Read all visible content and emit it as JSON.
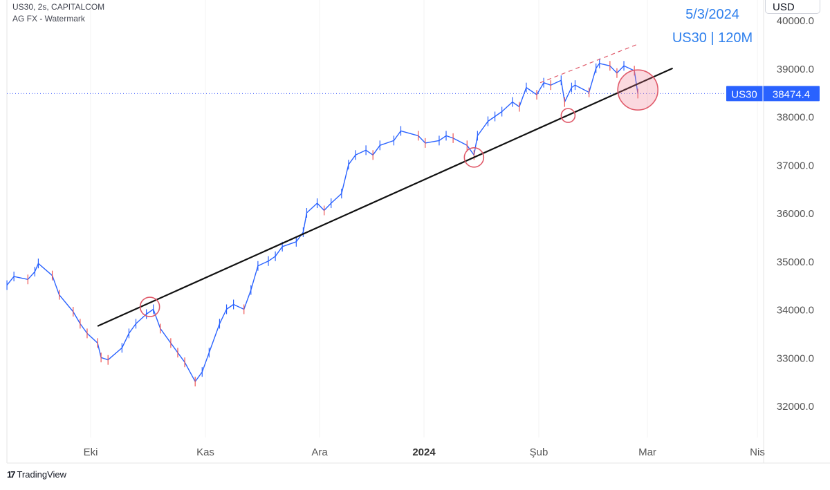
{
  "header": {
    "line1": "US30, 2s, CAPITALCOM",
    "line2": "AG FX - Watermark"
  },
  "currency": "USD",
  "branding": "TradingView",
  "annotations": {
    "date": "5/3/2024",
    "subtitle": "US30 | 120M"
  },
  "price_tag": {
    "symbol": "US30",
    "value": "38474.4"
  },
  "colors": {
    "up": "#2962ff",
    "down": "#ef5350",
    "trendline": "#111111",
    "annotation_text": "#2f80ed",
    "circle": "#e05a6a",
    "price_line": "#3d5afe",
    "axis_text": "#555555"
  },
  "chart_data": {
    "type": "line",
    "title": "",
    "x_ticks": [
      "Eki",
      "Kas",
      "Ara",
      "2024",
      "Şub",
      "Mar",
      "Nis"
    ],
    "y_ticks": [
      "32000.0",
      "33000.0",
      "34000.0",
      "35000.0",
      "36000.0",
      "37000.0",
      "38000.0",
      "39000.0",
      "40000.0"
    ],
    "ylim": [
      31500,
      40400
    ],
    "last_price": 38474.4,
    "series": [
      {
        "values": [
          [
            "2023-09-06",
            34500
          ],
          [
            "2023-09-08",
            34680
          ],
          [
            "2023-09-12",
            34620
          ],
          [
            "2023-09-14",
            34780
          ],
          [
            "2023-09-15",
            34950
          ],
          [
            "2023-09-19",
            34700
          ],
          [
            "2023-09-21",
            34300
          ],
          [
            "2023-09-25",
            33950
          ],
          [
            "2023-09-27",
            33700
          ],
          [
            "2023-09-29",
            33500
          ],
          [
            "2023-10-02",
            33300
          ],
          [
            "2023-10-03",
            33000
          ],
          [
            "2023-10-05",
            32950
          ],
          [
            "2023-10-09",
            33200
          ],
          [
            "2023-10-11",
            33500
          ],
          [
            "2023-10-13",
            33700
          ],
          [
            "2023-10-16",
            33900
          ],
          [
            "2023-10-18",
            34000
          ],
          [
            "2023-10-20",
            33600
          ],
          [
            "2023-10-23",
            33300
          ],
          [
            "2023-10-25",
            33100
          ],
          [
            "2023-10-27",
            32900
          ],
          [
            "2023-10-30",
            32500
          ],
          [
            "2023-11-01",
            32700
          ],
          [
            "2023-11-03",
            33100
          ],
          [
            "2023-11-06",
            33700
          ],
          [
            "2023-11-08",
            34000
          ],
          [
            "2023-11-10",
            34100
          ],
          [
            "2023-11-13",
            34000
          ],
          [
            "2023-11-15",
            34400
          ],
          [
            "2023-11-17",
            34900
          ],
          [
            "2023-11-20",
            35000
          ],
          [
            "2023-11-22",
            35100
          ],
          [
            "2023-11-24",
            35300
          ],
          [
            "2023-11-28",
            35400
          ],
          [
            "2023-11-30",
            35600
          ],
          [
            "2023-12-01",
            36000
          ],
          [
            "2023-12-04",
            36200
          ],
          [
            "2023-12-06",
            36050
          ],
          [
            "2023-12-08",
            36200
          ],
          [
            "2023-12-11",
            36400
          ],
          [
            "2023-12-13",
            37000
          ],
          [
            "2023-12-15",
            37200
          ],
          [
            "2023-12-18",
            37300
          ],
          [
            "2023-12-20",
            37200
          ],
          [
            "2023-12-22",
            37400
          ],
          [
            "2023-12-26",
            37500
          ],
          [
            "2023-12-28",
            37700
          ],
          [
            "2024-01-02",
            37600
          ],
          [
            "2024-01-04",
            37450
          ],
          [
            "2024-01-08",
            37500
          ],
          [
            "2024-01-10",
            37600
          ],
          [
            "2024-01-12",
            37550
          ],
          [
            "2024-01-16",
            37400
          ],
          [
            "2024-01-18",
            37200
          ],
          [
            "2024-01-19",
            37600
          ],
          [
            "2024-01-22",
            37900
          ],
          [
            "2024-01-24",
            38000
          ],
          [
            "2024-01-26",
            38100
          ],
          [
            "2024-01-29",
            38300
          ],
          [
            "2024-01-31",
            38200
          ],
          [
            "2024-02-02",
            38600
          ],
          [
            "2024-02-05",
            38450
          ],
          [
            "2024-02-07",
            38700
          ],
          [
            "2024-02-09",
            38650
          ],
          [
            "2024-02-12",
            38750
          ],
          [
            "2024-02-13",
            38300
          ],
          [
            "2024-02-15",
            38600
          ],
          [
            "2024-02-16",
            38650
          ],
          [
            "2024-02-20",
            38500
          ],
          [
            "2024-02-22",
            39000
          ],
          [
            "2024-02-23",
            39100
          ],
          [
            "2024-02-26",
            39050
          ],
          [
            "2024-02-28",
            38900
          ],
          [
            "2024-03-01",
            39050
          ],
          [
            "2024-03-04",
            38950
          ],
          [
            "2024-03-05",
            38474.4
          ]
        ]
      }
    ],
    "trendline": {
      "points": [
        [
          "2023-10-02",
          33650
        ],
        [
          "2024-03-15",
          39000
        ]
      ]
    },
    "resistance_line": {
      "style": "dashed",
      "points": [
        [
          "2024-02-06",
          38700
        ],
        [
          "2024-03-05",
          39500
        ]
      ]
    },
    "circled_points": [
      {
        "x": "2023-10-17",
        "y": 34050
      },
      {
        "x": "2024-01-18",
        "y": 37150
      },
      {
        "x": "2024-02-14",
        "y": 38020
      },
      {
        "x": "2024-03-05",
        "y": 38550,
        "large": true
      }
    ]
  }
}
